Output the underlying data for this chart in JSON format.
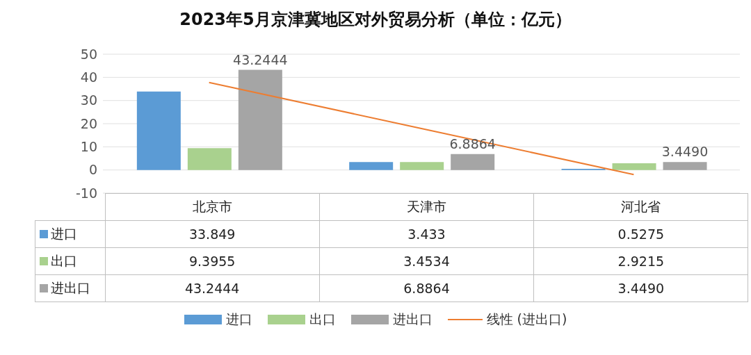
{
  "chart_data": {
    "type": "bar",
    "title": "2023年5月京津冀地区对外贸易分析（单位：亿元）",
    "categories": [
      "北京市",
      "天津市",
      "河北省"
    ],
    "series": [
      {
        "name": "进口",
        "color": "#5b9bd5",
        "values": [
          33.849,
          3.433,
          0.5275
        ],
        "value_labels": [
          "33.849",
          "3.433",
          "0.5275"
        ]
      },
      {
        "name": "出口",
        "color": "#a9d18e",
        "values": [
          9.3955,
          3.4534,
          2.9215
        ],
        "value_labels": [
          "9.3955",
          "3.4534",
          "2.9215"
        ]
      },
      {
        "name": "进出口",
        "color": "#a5a5a5",
        "values": [
          43.2444,
          6.8864,
          3.449
        ],
        "value_labels": [
          "43.2444",
          "6.8864",
          "3.4490"
        ]
      },
      {
        "name": "线性 (进出口)",
        "type": "line",
        "color": "#ed7d31",
        "x": [
          "北京市",
          "天津市",
          "河北省"
        ],
        "values": [
          37.8,
          17.9,
          -2.0
        ]
      }
    ],
    "annotations": [
      "43.2444",
      "6.8864",
      "3.4490"
    ],
    "ylim": [
      -10,
      50
    ],
    "yticks": [
      -10,
      0,
      10,
      20,
      30,
      40,
      50
    ],
    "grid": "y",
    "legend": "bottom"
  }
}
